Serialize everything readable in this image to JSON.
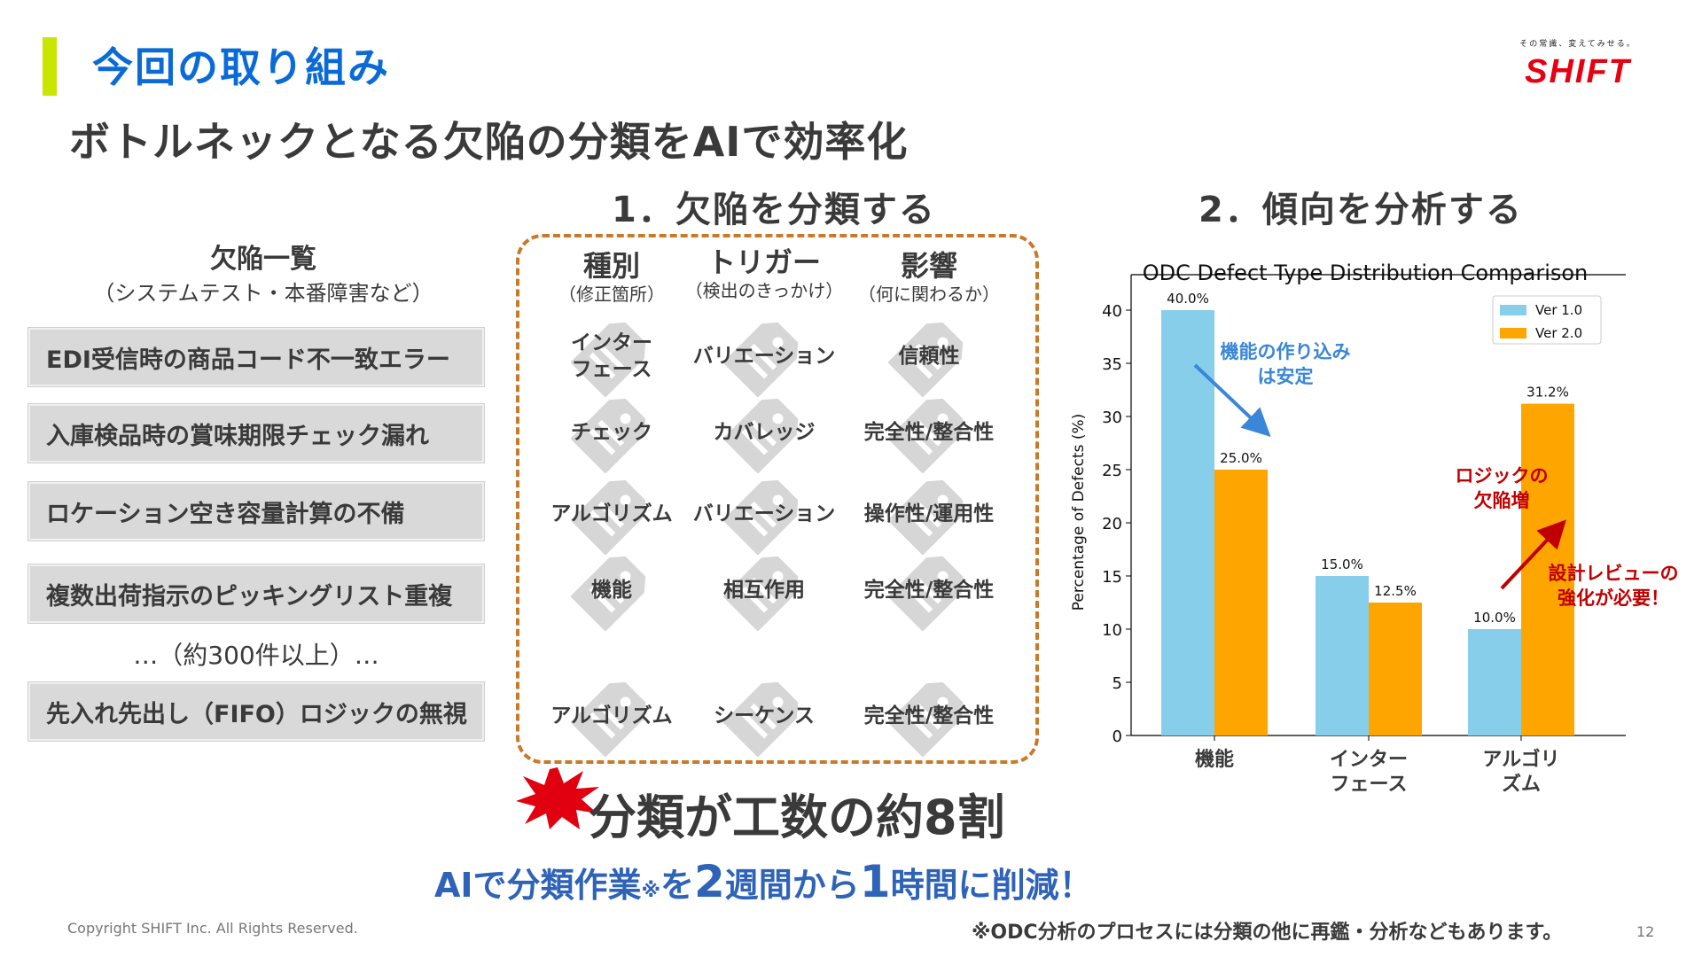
{
  "header": {
    "title": "今回の取り組み",
    "logo_tagline": "その常識、変えてみせる。",
    "logo_text": "SHIFT"
  },
  "subtitle": "ボトルネックとなる欠陥の分類をAIで効率化",
  "step1_title": "1．欠陥を分類する",
  "step2_title": "2．傾向を分析する",
  "defect_list": {
    "heading": "欠陥一覧",
    "subheading": "（システムテスト・本番障害など）",
    "items": [
      "EDI受信時の商品コード不一致エラー",
      "入庫検品時の賞味期限チェック漏れ",
      "ロケーション空き容量計算の不備",
      "複数出荷指示のピッキングリスト重複",
      "先入れ先出し（FIFO）ロジックの無視"
    ],
    "ellipsis": "…（約300件以上）…"
  },
  "classification": {
    "columns": [
      {
        "title": "種別",
        "sub": "（修正箇所）"
      },
      {
        "title": "トリガー",
        "sub": "（検出のきっかけ）"
      },
      {
        "title": "影響",
        "sub": "（何に関わるか）"
      }
    ],
    "rows": [
      [
        "インター\nフェース",
        "バリエーション",
        "信頼性"
      ],
      [
        "チェック",
        "カバレッジ",
        "完全性/整合性"
      ],
      [
        "アルゴリズム",
        "バリエーション",
        "操作性/運用性"
      ],
      [
        "機能",
        "相互作用",
        "完全性/整合性"
      ],
      [
        "アルゴリズム",
        "シーケンス",
        "完全性/整合性"
      ]
    ]
  },
  "chart_data": {
    "type": "bar",
    "title": "ODC Defect Type Distribution Comparison",
    "xlabel": "",
    "ylabel": "Percentage of Defects (%)",
    "categories": [
      "機能",
      "インター\nフェース",
      "アルゴリ\nズム"
    ],
    "series": [
      {
        "name": "Ver 1.0",
        "values": [
          40.0,
          15.0,
          10.0
        ],
        "color": "#87ceeb"
      },
      {
        "name": "Ver 2.0",
        "values": [
          25.0,
          12.5,
          31.2
        ],
        "color": "#ffa500"
      }
    ],
    "value_labels": [
      [
        "40.0%",
        "15.0%",
        "10.0%"
      ],
      [
        "25.0%",
        "12.5%",
        "31.2%"
      ]
    ],
    "ylim": [
      0,
      42
    ],
    "yticks": [
      0,
      5,
      10,
      15,
      20,
      25,
      30,
      35,
      40
    ],
    "legend": "top-right",
    "grid": false,
    "annotations": [
      {
        "text": "機能の作り込み\nは安定",
        "color": "#3a86d8"
      },
      {
        "text": "ロジックの\n欠陥増",
        "color": "#c00000"
      },
      {
        "text": "設計レビューの\n強化が必要！",
        "color": "#c00000"
      }
    ]
  },
  "result": {
    "claim": "分類が工数の約8割",
    "reduce_prefix": "AIで分類作業",
    "reduce_mark": "※",
    "reduce_mid1": "を",
    "reduce_num1": "2",
    "reduce_mid2": "週間から",
    "reduce_num2": "1",
    "reduce_mid3": "時間",
    "reduce_suffix": "に削減！"
  },
  "footnote": "※ODC分析のプロセスには分類の他に再鑑・分析などもあります。",
  "copyright": "Copyright SHIFT Inc. All Rights Reserved.",
  "page_number": "12",
  "colors": {
    "title_blue": "#0a6ad6",
    "accent_lime": "#c8e600",
    "brand_red": "#e60012",
    "dash_orange": "#c87a2a"
  }
}
